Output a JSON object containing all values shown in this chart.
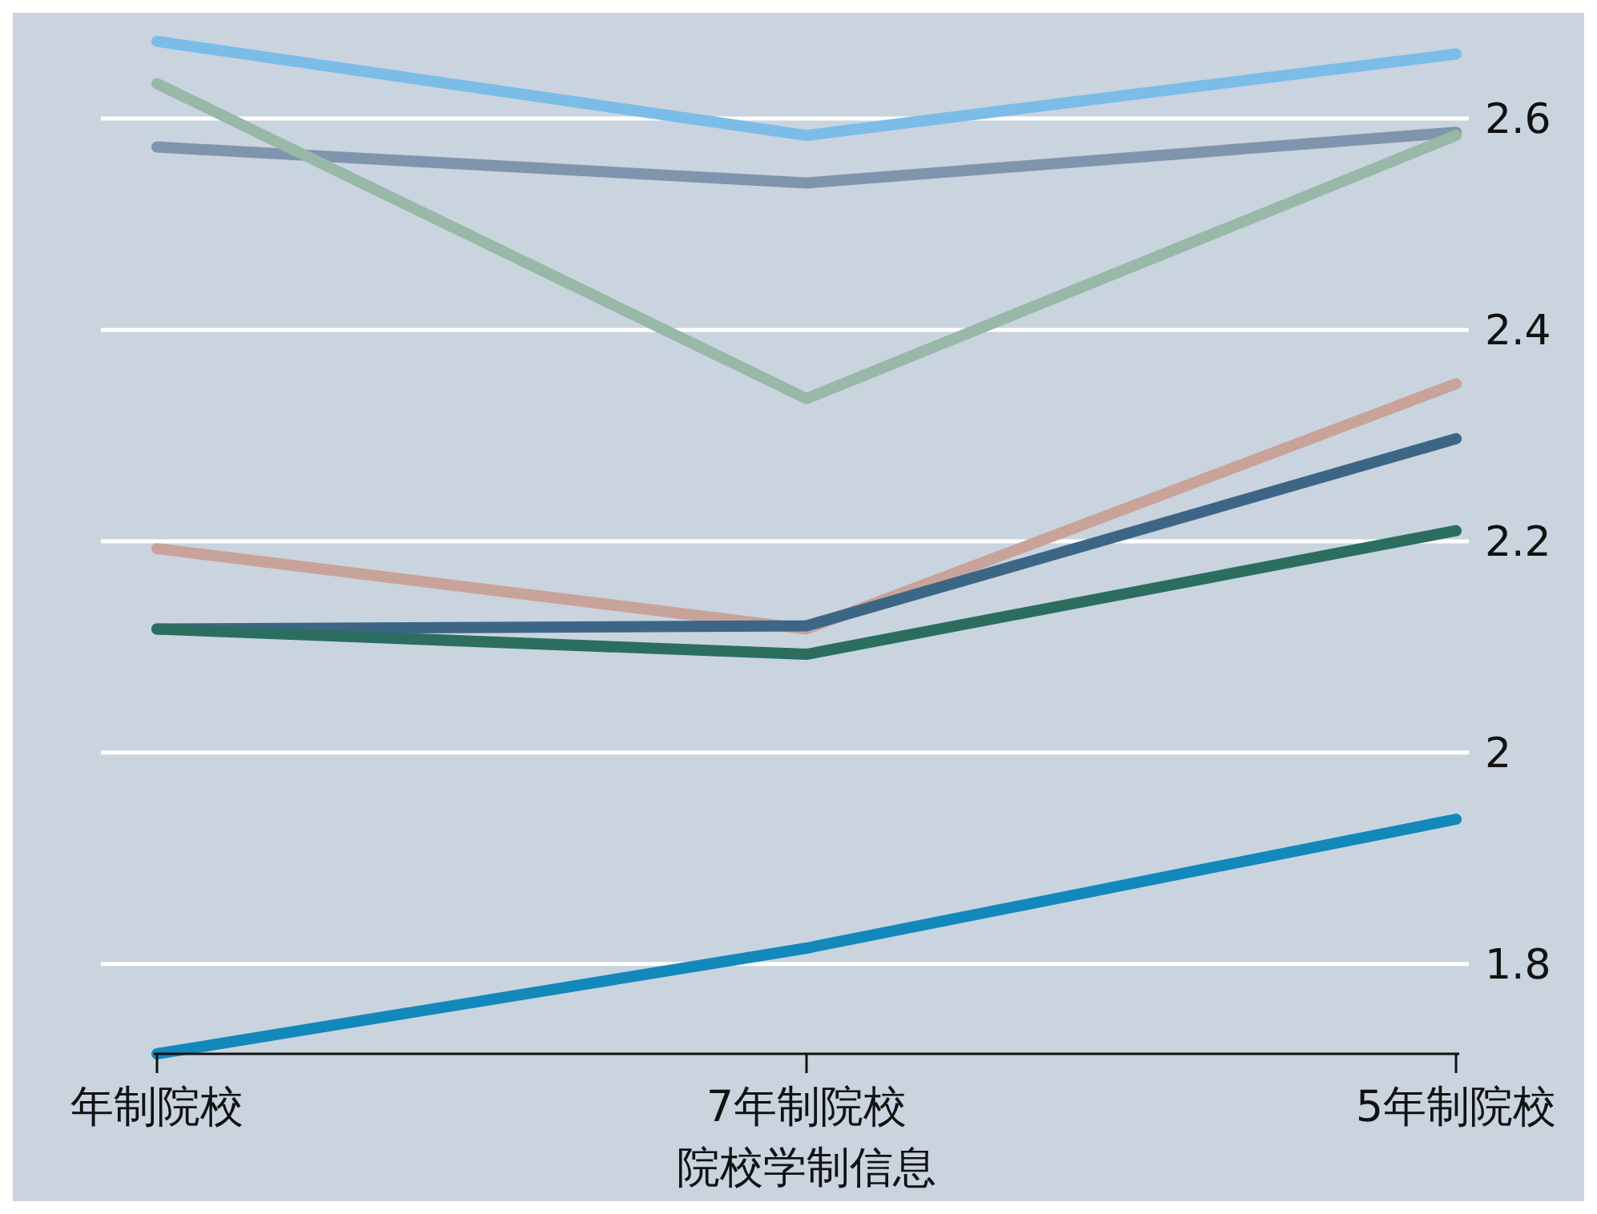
{
  "chart_data": {
    "type": "line",
    "xlabel": "院校学制信息",
    "categories": [
      "年制院校",
      "7年制院校",
      "5年制院校"
    ],
    "series": [
      {
        "color": "#7cbce8",
        "values": [
          2.673,
          2.584,
          2.661
        ]
      },
      {
        "color": "#7f95ad",
        "values": [
          2.573,
          2.539,
          2.587
        ]
      },
      {
        "color": "#98b8a8",
        "values": [
          2.633,
          2.335,
          2.584
        ]
      },
      {
        "color": "#c8a39a",
        "values": [
          2.193,
          2.117,
          2.349
        ]
      },
      {
        "color": "#3d6686",
        "values": [
          2.117,
          2.12,
          2.297
        ]
      },
      {
        "color": "#2b6e60",
        "values": [
          2.117,
          2.093,
          2.21
        ]
      },
      {
        "color": "#1388bb",
        "values": [
          1.715,
          1.815,
          1.937
        ]
      }
    ],
    "ylim": [
      1.715,
      2.7
    ],
    "yticks": [
      1.8,
      2,
      2.2,
      2.4,
      2.6
    ],
    "grid": "y",
    "marker": "none",
    "line_style": "solid"
  }
}
